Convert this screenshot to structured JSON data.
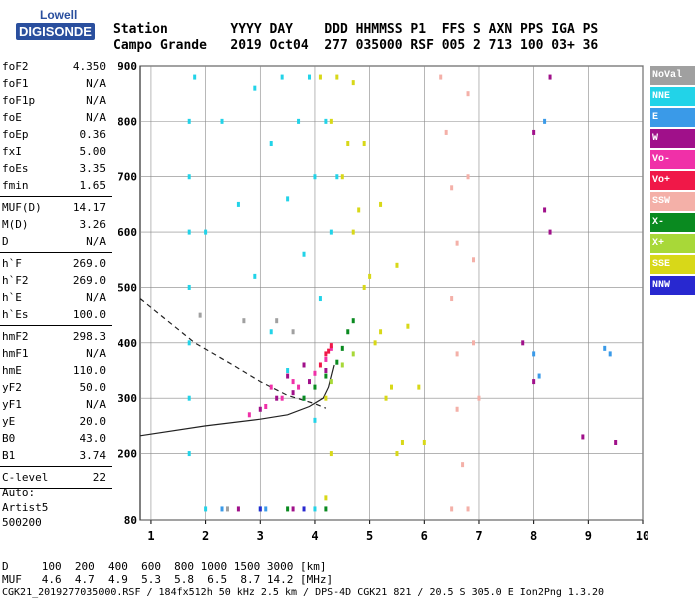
{
  "logo": {
    "line1": "Lowell",
    "line2": "DIGISONDE"
  },
  "header": {
    "labels": "Station        YYYY DAY    DDD HHMMSS P1  FFS S AXN PPS IGA PS",
    "values": "Campo Grande   2019 Oct04  277 035000 RSF 005 2 713 100 03+ 36"
  },
  "params": [
    {
      "group": [
        {
          "key": "foF2",
          "value": "4.350"
        },
        {
          "key": "foF1",
          "value": "N/A"
        },
        {
          "key": "foF1p",
          "value": "N/A"
        },
        {
          "key": "foE",
          "value": "N/A"
        },
        {
          "key": "foEp",
          "value": "0.36"
        },
        {
          "key": "fxI",
          "value": "5.00"
        },
        {
          "key": "foEs",
          "value": "3.35"
        },
        {
          "key": "fmin",
          "value": "1.65"
        }
      ]
    },
    {
      "group": [
        {
          "key": "MUF(D)",
          "value": "14.17"
        },
        {
          "key": "M(D)",
          "value": "3.26"
        },
        {
          "key": "D",
          "value": "N/A"
        }
      ]
    },
    {
      "group": [
        {
          "key": "h`F",
          "value": "269.0"
        },
        {
          "key": "h`F2",
          "value": "269.0"
        },
        {
          "key": "h`E",
          "value": "N/A"
        },
        {
          "key": "h`Es",
          "value": "100.0"
        }
      ]
    },
    {
      "group": [
        {
          "key": "hmF2",
          "value": "298.3"
        },
        {
          "key": "hmF1",
          "value": "N/A"
        },
        {
          "key": "hmE",
          "value": "110.0"
        },
        {
          "key": "yF2",
          "value": "50.0"
        },
        {
          "key": "yF1",
          "value": "N/A"
        },
        {
          "key": "yE",
          "value": "20.0"
        },
        {
          "key": "B0",
          "value": "43.0"
        },
        {
          "key": "B1",
          "value": "3.74"
        }
      ]
    },
    {
      "group": [
        {
          "key": "C-level",
          "value": "22"
        }
      ]
    }
  ],
  "auto": {
    "l1": "Auto:",
    "l2": "Artist5",
    "l3": "500200"
  },
  "legend": [
    {
      "label": "NoVal",
      "color": "#a0a0a0"
    },
    {
      "label": "NNE",
      "color": "#22d3e8"
    },
    {
      "label": "E",
      "color": "#3a9ae8"
    },
    {
      "label": "W",
      "color": "#a0108a"
    },
    {
      "label": "Vo-",
      "color": "#f030a8"
    },
    {
      "label": "Vo+",
      "color": "#f01848"
    },
    {
      "label": "SSW",
      "color": "#f4b0a8"
    },
    {
      "label": "X-",
      "color": "#0a8a20"
    },
    {
      "label": "X+",
      "color": "#a8d838"
    },
    {
      "label": "SSE",
      "color": "#d8d818"
    },
    {
      "label": "NNW",
      "color": "#2828d0"
    }
  ],
  "footer": {
    "line1": "D     100  200  400  600  800 1000 1500 3000 [km]",
    "line2": "MUF   4.6  4.7  4.9  5.3  5.8  6.5  8.7 14.2 [MHz]"
  },
  "fileline": "CGK21_2019277035000.RSF / 184fx512h 50 kHz 2.5 km / DPS-4D CGK21 821 / 20.5 S 305.0 E Ion2Png 1.3.20",
  "chart_data": {
    "type": "scatter",
    "xlim": [
      0.8,
      10
    ],
    "ylim": [
      80,
      900
    ],
    "xticks": [
      1,
      2,
      3,
      4,
      5,
      6,
      7,
      8,
      9,
      10
    ],
    "yticks": [
      80,
      200,
      300,
      400,
      500,
      600,
      700,
      800,
      900
    ],
    "grid": true,
    "legend_position": "right",
    "series": [
      {
        "name": "NNE",
        "color": "#22d3e8",
        "points": [
          [
            1.7,
            200
          ],
          [
            1.7,
            300
          ],
          [
            1.7,
            400
          ],
          [
            1.7,
            500
          ],
          [
            1.7,
            600
          ],
          [
            1.7,
            700
          ],
          [
            1.7,
            800
          ],
          [
            1.8,
            880
          ],
          [
            2.0,
            600
          ],
          [
            2.3,
            800
          ],
          [
            2.6,
            650
          ],
          [
            2.9,
            520
          ],
          [
            3.2,
            420
          ],
          [
            3.5,
            350
          ],
          [
            3.8,
            300
          ],
          [
            4.0,
            260
          ],
          [
            2.9,
            860
          ],
          [
            3.2,
            760
          ],
          [
            3.5,
            660
          ],
          [
            3.8,
            560
          ],
          [
            4.1,
            480
          ],
          [
            3.4,
            880
          ],
          [
            3.7,
            800
          ],
          [
            4.0,
            700
          ],
          [
            4.3,
            600
          ],
          [
            3.9,
            880
          ],
          [
            4.2,
            800
          ],
          [
            4.4,
            700
          ],
          [
            2.0,
            100
          ],
          [
            3.0,
            100
          ],
          [
            4.0,
            100
          ]
        ]
      },
      {
        "name": "SSE",
        "color": "#d8d818",
        "points": [
          [
            4.1,
            880
          ],
          [
            4.3,
            800
          ],
          [
            4.5,
            700
          ],
          [
            4.7,
            600
          ],
          [
            4.9,
            500
          ],
          [
            5.1,
            400
          ],
          [
            5.3,
            300
          ],
          [
            5.5,
            200
          ],
          [
            4.4,
            880
          ],
          [
            4.6,
            760
          ],
          [
            4.8,
            640
          ],
          [
            5.0,
            520
          ],
          [
            5.2,
            420
          ],
          [
            5.4,
            320
          ],
          [
            5.6,
            220
          ],
          [
            4.7,
            870
          ],
          [
            4.9,
            760
          ],
          [
            5.2,
            650
          ],
          [
            5.5,
            540
          ],
          [
            5.7,
            430
          ],
          [
            5.9,
            320
          ],
          [
            6.0,
            220
          ],
          [
            4.2,
            300
          ],
          [
            4.3,
            200
          ],
          [
            4.2,
            120
          ]
        ]
      },
      {
        "name": "SSW",
        "color": "#f4b0a8",
        "points": [
          [
            6.3,
            880
          ],
          [
            6.4,
            780
          ],
          [
            6.5,
            680
          ],
          [
            6.6,
            580
          ],
          [
            6.5,
            480
          ],
          [
            6.6,
            380
          ],
          [
            6.6,
            280
          ],
          [
            6.7,
            180
          ],
          [
            6.8,
            850
          ],
          [
            6.8,
            700
          ],
          [
            6.9,
            550
          ],
          [
            6.9,
            400
          ],
          [
            7.0,
            300
          ],
          [
            6.5,
            100
          ],
          [
            6.8,
            100
          ]
        ]
      },
      {
        "name": "W",
        "color": "#a0108a",
        "points": [
          [
            3.0,
            280
          ],
          [
            3.3,
            300
          ],
          [
            3.6,
            310
          ],
          [
            3.9,
            330
          ],
          [
            4.2,
            350
          ],
          [
            3.5,
            340
          ],
          [
            3.8,
            360
          ],
          [
            8.3,
            880
          ],
          [
            8.2,
            640
          ],
          [
            8.3,
            600
          ],
          [
            8.0,
            780
          ],
          [
            7.8,
            400
          ],
          [
            8.0,
            330
          ],
          [
            8.9,
            230
          ],
          [
            9.5,
            220
          ],
          [
            2.6,
            100
          ],
          [
            3.6,
            100
          ]
        ]
      },
      {
        "name": "Vo-",
        "color": "#f030a8",
        "points": [
          [
            2.8,
            270
          ],
          [
            3.1,
            285
          ],
          [
            3.4,
            300
          ],
          [
            3.7,
            320
          ],
          [
            4.0,
            345
          ],
          [
            4.2,
            370
          ],
          [
            4.3,
            390
          ],
          [
            3.2,
            320
          ],
          [
            3.6,
            330
          ]
        ]
      },
      {
        "name": "Vo+",
        "color": "#f01848",
        "points": [
          [
            4.1,
            360
          ],
          [
            4.2,
            380
          ],
          [
            4.3,
            395
          ],
          [
            4.25,
            385
          ]
        ]
      },
      {
        "name": "X-",
        "color": "#0a8a20",
        "points": [
          [
            3.8,
            300
          ],
          [
            4.0,
            320
          ],
          [
            4.2,
            340
          ],
          [
            4.4,
            365
          ],
          [
            4.5,
            390
          ],
          [
            4.6,
            420
          ],
          [
            4.7,
            440
          ],
          [
            3.5,
            100
          ],
          [
            4.2,
            100
          ]
        ]
      },
      {
        "name": "X+",
        "color": "#a8d838",
        "points": [
          [
            4.3,
            330
          ],
          [
            4.5,
            360
          ],
          [
            4.7,
            380
          ]
        ]
      },
      {
        "name": "E",
        "color": "#3a9ae8",
        "points": [
          [
            8.0,
            380
          ],
          [
            8.1,
            340
          ],
          [
            8.2,
            800
          ],
          [
            9.3,
            390
          ],
          [
            9.4,
            380
          ],
          [
            3.1,
            100
          ],
          [
            2.3,
            100
          ]
        ]
      },
      {
        "name": "NNW",
        "color": "#2828d0",
        "points": [
          [
            3.0,
            100
          ],
          [
            3.8,
            100
          ]
        ]
      },
      {
        "name": "NoVal",
        "color": "#a0a0a0",
        "points": [
          [
            1.9,
            450
          ],
          [
            2.7,
            440
          ],
          [
            3.3,
            440
          ],
          [
            3.6,
            420
          ],
          [
            2.4,
            100
          ]
        ]
      }
    ]
  }
}
